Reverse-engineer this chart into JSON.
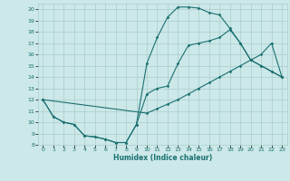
{
  "xlabel": "Humidex (Indice chaleur)",
  "xlim": [
    -0.5,
    23.5
  ],
  "ylim": [
    8,
    20.5
  ],
  "xticks": [
    0,
    1,
    2,
    3,
    4,
    5,
    6,
    7,
    8,
    9,
    10,
    11,
    12,
    13,
    14,
    15,
    16,
    17,
    18,
    19,
    20,
    21,
    22,
    23
  ],
  "yticks": [
    8,
    9,
    10,
    11,
    12,
    13,
    14,
    15,
    16,
    17,
    18,
    19,
    20
  ],
  "background_color": "#cce8e8",
  "grid_color": "#aacccc",
  "line_color": "#1a7070",
  "line1_x": [
    0,
    1,
    2,
    3,
    4,
    5,
    6,
    7,
    8,
    9,
    10,
    11,
    12,
    13,
    14,
    15,
    16,
    17,
    18,
    19,
    20,
    21,
    22,
    23
  ],
  "line1_y": [
    12,
    10.5,
    10.0,
    9.8,
    8.8,
    8.7,
    8.5,
    8.2,
    8.2,
    9.8,
    15.2,
    17.5,
    19.3,
    20.2,
    20.2,
    20.1,
    19.7,
    19.5,
    18.3,
    17.0,
    15.5,
    15.0,
    14.5,
    14.0
  ],
  "line2_x": [
    0,
    1,
    2,
    3,
    4,
    5,
    6,
    7,
    8,
    9,
    10,
    11,
    12,
    13,
    14,
    15,
    16,
    17,
    18,
    19,
    20,
    21,
    22,
    23
  ],
  "line2_y": [
    12,
    10.5,
    10.0,
    9.8,
    8.8,
    8.7,
    8.5,
    8.2,
    8.2,
    9.8,
    12.5,
    13.0,
    13.2,
    15.2,
    16.8,
    17.0,
    17.2,
    17.5,
    18.2,
    17.0,
    15.5,
    15.0,
    14.5,
    14.0
  ],
  "line3_x": [
    0,
    10,
    11,
    12,
    13,
    14,
    15,
    16,
    17,
    18,
    19,
    20,
    21,
    22,
    23
  ],
  "line3_y": [
    12,
    10.8,
    11.2,
    11.6,
    12.0,
    12.5,
    13.0,
    13.5,
    14.0,
    14.5,
    15.0,
    15.5,
    16.0,
    17.0,
    14.0
  ]
}
